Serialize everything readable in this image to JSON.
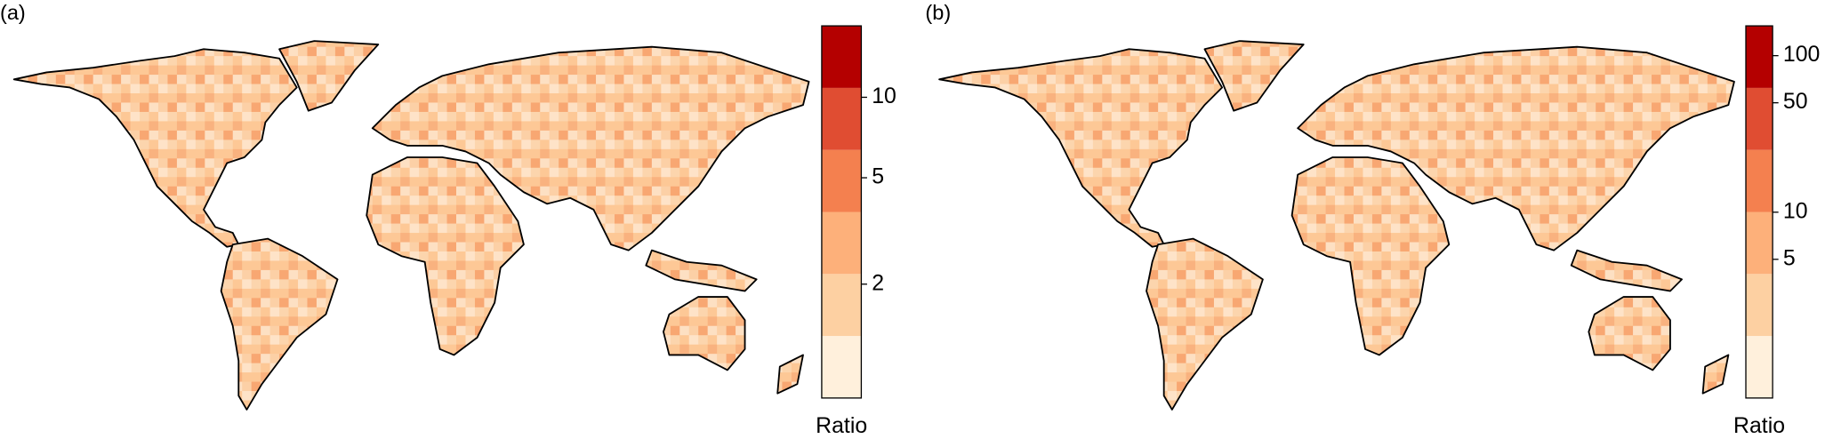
{
  "panels": [
    {
      "label": "(a)",
      "colorbar": {
        "title": "Ratio",
        "log": true,
        "ylim": [
          0.75,
          18.5
        ],
        "yticks": [
          2,
          5,
          10
        ],
        "colors": [
          "#fff0dc",
          "#fdd0a2",
          "#fdb07a",
          "#f4804f",
          "#e04d32",
          "#b40000"
        ]
      }
    },
    {
      "label": "(b)",
      "colorbar": {
        "title": "Ratio",
        "log": true,
        "ylim": [
          0.65,
          155
        ],
        "yticks": [
          5,
          10,
          50,
          100
        ],
        "colors": [
          "#fff0dc",
          "#fdd0a2",
          "#fdb07a",
          "#f4804f",
          "#e04d32",
          "#b40000"
        ]
      }
    }
  ]
}
